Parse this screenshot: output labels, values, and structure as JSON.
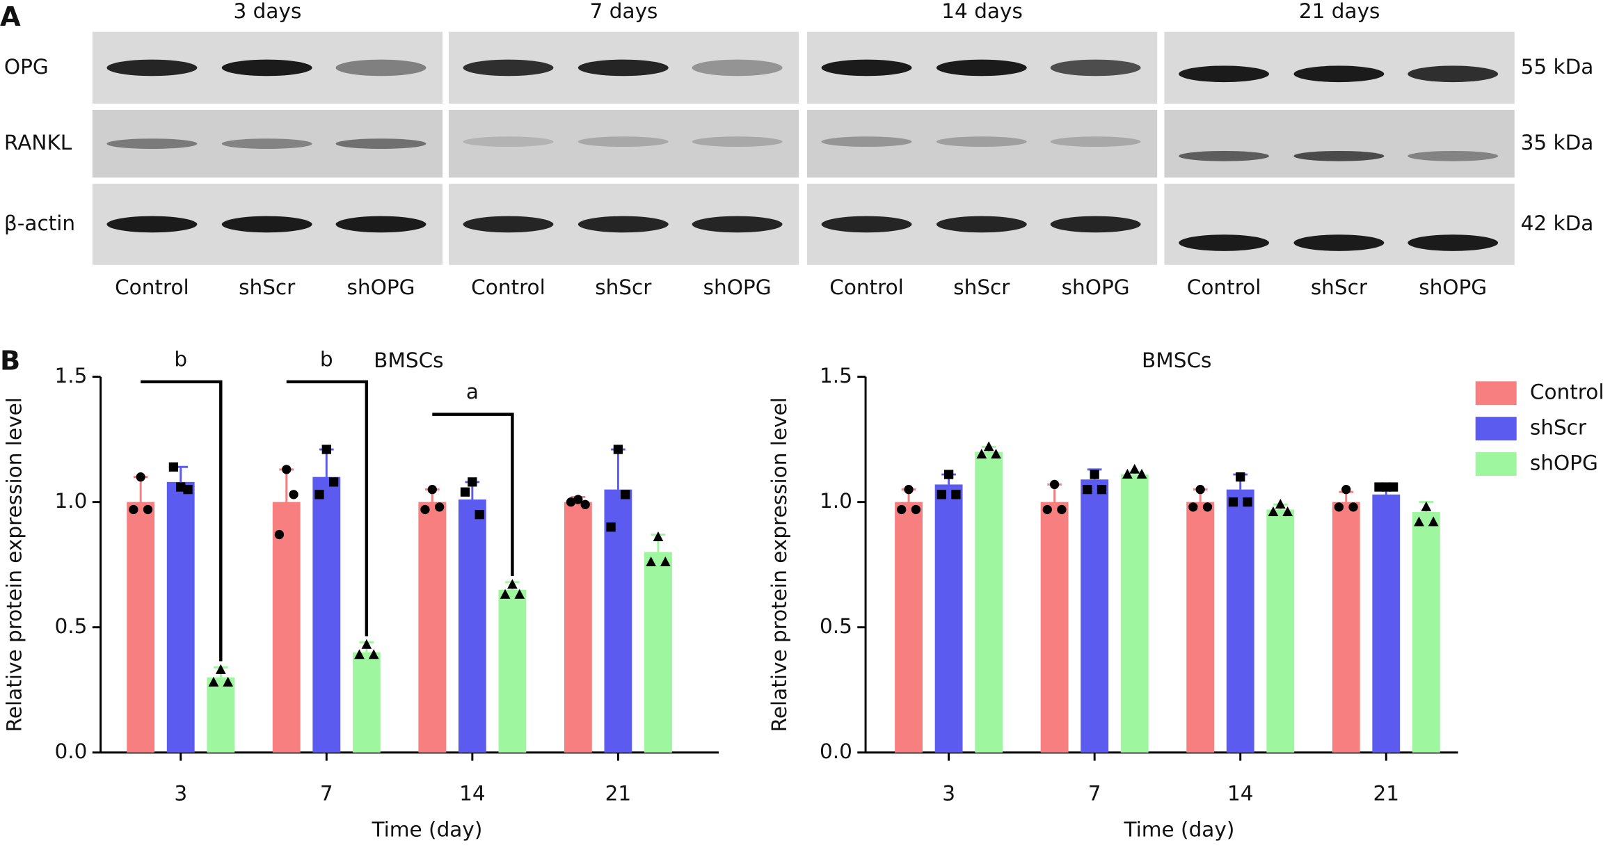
{
  "blot": {
    "panel_label": "A",
    "time_labels": [
      "3 days",
      "7 days",
      "14 days",
      "21 days"
    ],
    "proteins": [
      "OPG",
      "RANKL",
      "β-actin"
    ],
    "sizes": [
      "55 kDa",
      "35 kDa",
      "42 kDa"
    ],
    "lanes": [
      "Control",
      "shScr",
      "shOPG"
    ]
  },
  "panel_label_b": "B",
  "chart_data": [
    {
      "type": "bar",
      "title": "BMSCs",
      "x_label": "Time (day)",
      "y_label": "Relative protein expression level",
      "categories": [
        "3",
        "7",
        "14",
        "21"
      ],
      "ylim": [
        0,
        1.5
      ],
      "yticks": [
        {
          "value": 0,
          "label": "0.0"
        },
        0.5,
        {
          "value": 1,
          "label": "1.0"
        },
        1.5
      ],
      "legend": "none",
      "significance": [
        "b",
        "b",
        "a",
        null
      ],
      "series": [
        {
          "name": "Control",
          "color": "#f87f7f",
          "marker": "circle",
          "values": [
            1.0,
            1.0,
            1.0,
            1.0
          ],
          "errors": [
            0.1,
            0.13,
            0.05,
            0.02
          ],
          "points": [
            [
              0.97,
              0.97,
              1.1
            ],
            [
              0.87,
              1.03,
              1.13
            ],
            [
              0.97,
              0.98,
              1.05
            ],
            [
              1.0,
              0.99,
              1.01
            ]
          ]
        },
        {
          "name": "shScr",
          "color": "#5b5bef",
          "marker": "square",
          "values": [
            1.08,
            1.1,
            1.01,
            1.05
          ],
          "errors": [
            0.06,
            0.11,
            0.07,
            0.16
          ],
          "points": [
            [
              1.14,
              1.05,
              1.06
            ],
            [
              1.03,
              1.08,
              1.21
            ],
            [
              1.04,
              0.95,
              1.08
            ],
            [
              0.9,
              1.03,
              1.21
            ]
          ]
        },
        {
          "name": "shOPG",
          "color": "#9ef79e",
          "marker": "triangle",
          "values": [
            0.3,
            0.4,
            0.65,
            0.8
          ],
          "errors": [
            0.04,
            0.04,
            0.03,
            0.07
          ],
          "points": [
            [
              0.28,
              0.28,
              0.33
            ],
            [
              0.39,
              0.39,
              0.43
            ],
            [
              0.63,
              0.63,
              0.67
            ],
            [
              0.76,
              0.76,
              0.86
            ]
          ]
        }
      ]
    },
    {
      "type": "bar",
      "title": "BMSCs",
      "x_label": "Time (day)",
      "y_label": "Relative protein expression level",
      "categories": [
        "3",
        "7",
        "14",
        "21"
      ],
      "ylim": [
        0,
        1.5
      ],
      "yticks": [
        {
          "value": 0,
          "label": "0.0"
        },
        0.5,
        {
          "value": 1,
          "label": "1.0"
        },
        1.5
      ],
      "legend": "right",
      "series": [
        {
          "name": "Control",
          "color": "#f87f7f",
          "marker": "circle",
          "values": [
            1.0,
            1.0,
            1.0,
            1.0
          ],
          "errors": [
            0.05,
            0.07,
            0.05,
            0.04
          ],
          "points": [
            [
              0.97,
              0.97,
              1.05
            ],
            [
              0.97,
              0.97,
              1.07
            ],
            [
              0.98,
              0.98,
              1.05
            ],
            [
              0.98,
              0.98,
              1.05
            ]
          ]
        },
        {
          "name": "shScr",
          "color": "#5b5bef",
          "marker": "square",
          "values": [
            1.07,
            1.09,
            1.05,
            1.03
          ],
          "errors": [
            0.04,
            0.04,
            0.06,
            0.03
          ],
          "points": [
            [
              1.03,
              1.03,
              1.11
            ],
            [
              1.05,
              1.05,
              1.11
            ],
            [
              1.0,
              1.0,
              1.1
            ],
            [
              1.06,
              1.06,
              1.06
            ]
          ]
        },
        {
          "name": "shOPG",
          "color": "#9ef79e",
          "marker": "triangle",
          "values": [
            1.2,
            1.11,
            0.97,
            0.96
          ],
          "errors": [
            0.02,
            0.01,
            0.02,
            0.04
          ],
          "points": [
            [
              1.19,
              1.19,
              1.22
            ],
            [
              1.11,
              1.11,
              1.13
            ],
            [
              0.96,
              0.96,
              0.99
            ],
            [
              0.92,
              0.92,
              0.98
            ]
          ]
        }
      ]
    }
  ]
}
